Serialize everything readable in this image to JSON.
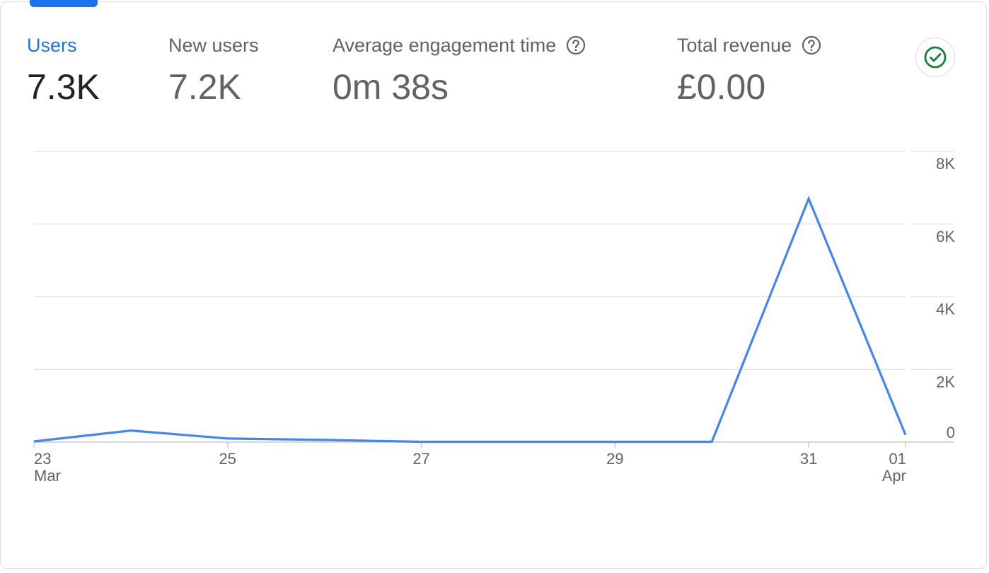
{
  "metrics": [
    {
      "label": "Users",
      "value": "7.3K",
      "active": true,
      "help": false
    },
    {
      "label": "New users",
      "value": "7.2K",
      "active": false,
      "help": false
    },
    {
      "label": "Average engagement time",
      "value": "0m 38s",
      "active": false,
      "help": true
    },
    {
      "label": "Total revenue",
      "value": "£0.00",
      "active": false,
      "help": true
    }
  ],
  "status_icon": "check-circle-icon",
  "colors": {
    "accent": "#1a73e8",
    "line": "#4285f4",
    "status_green": "#188038",
    "grid": "#e0e0e0",
    "text_muted": "#5f6368"
  },
  "chart_data": {
    "type": "line",
    "x": [
      "23 Mar",
      "24 Mar",
      "25 Mar",
      "26 Mar",
      "27 Mar",
      "28 Mar",
      "29 Mar",
      "30 Mar",
      "31 Mar",
      "01 Apr"
    ],
    "x_tick_labels": [
      {
        "day": "23",
        "month": "Mar"
      },
      {
        "day": "25",
        "month": ""
      },
      {
        "day": "27",
        "month": ""
      },
      {
        "day": "29",
        "month": ""
      },
      {
        "day": "31",
        "month": ""
      },
      {
        "day": "01",
        "month": "Apr"
      }
    ],
    "series": [
      {
        "values": [
          20,
          320,
          100,
          60,
          10,
          10,
          10,
          10,
          6700,
          200
        ]
      }
    ],
    "y_ticks": [
      "0",
      "2K",
      "4K",
      "6K",
      "8K"
    ],
    "ylim": [
      0,
      8000
    ],
    "y_axis_position": "right",
    "grid": true
  }
}
